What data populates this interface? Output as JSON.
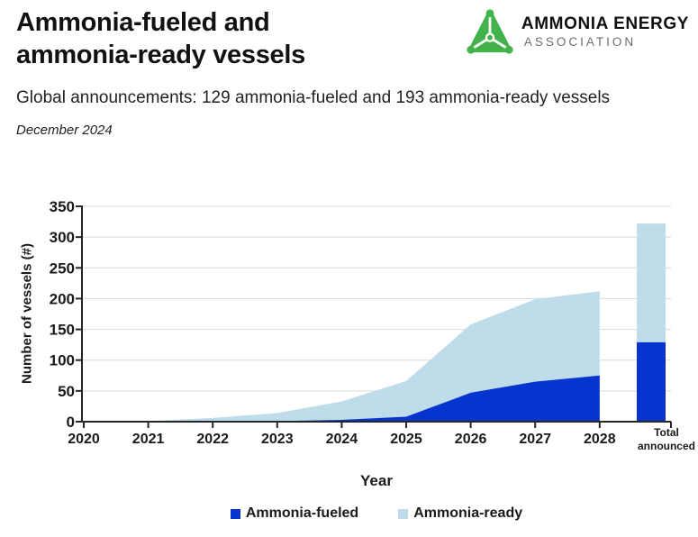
{
  "header": {
    "title_line1": "Ammonia-fueled and",
    "title_line2": "ammonia-ready vessels",
    "subtitle": "Global announcements: 129 ammonia-fueled and 193 ammonia-ready vessels",
    "date": "December 2024",
    "logo": {
      "name": "AMMONIA ENERGY",
      "sub": "ASSOCIATION",
      "icon": "ammonia-molecule-triangle-icon",
      "green": "#42b24a"
    }
  },
  "chart_data": {
    "type": "area",
    "stacked": true,
    "title": "",
    "xlabel": "Year",
    "ylabel": "Number of vessels (#)",
    "ylim": [
      0,
      350
    ],
    "ytick_step": 50,
    "grid": "horizontal",
    "legend_position": "bottom",
    "categories": [
      "2020",
      "2021",
      "2022",
      "2023",
      "2024",
      "2025",
      "2026",
      "2027",
      "2028"
    ],
    "series": [
      {
        "name": "Ammonia-fueled",
        "color": "#0634ce",
        "values": [
          0,
          0,
          0,
          1,
          3,
          8,
          47,
          65,
          75
        ]
      },
      {
        "name": "Ammonia-ready",
        "color": "#bedcea",
        "values": [
          0,
          1,
          6,
          13,
          30,
          58,
          111,
          134,
          137
        ]
      }
    ],
    "stacked_totals": [
      0,
      1,
      6,
      14,
      33,
      66,
      158,
      199,
      212
    ],
    "total_bar": {
      "label_lines": [
        "Total",
        "announced"
      ],
      "fueled": 129,
      "ready": 193,
      "total": 322
    }
  },
  "colors": {
    "grid": "#d9d9d9",
    "axis": "#262626",
    "text": "#1a1a1a"
  }
}
